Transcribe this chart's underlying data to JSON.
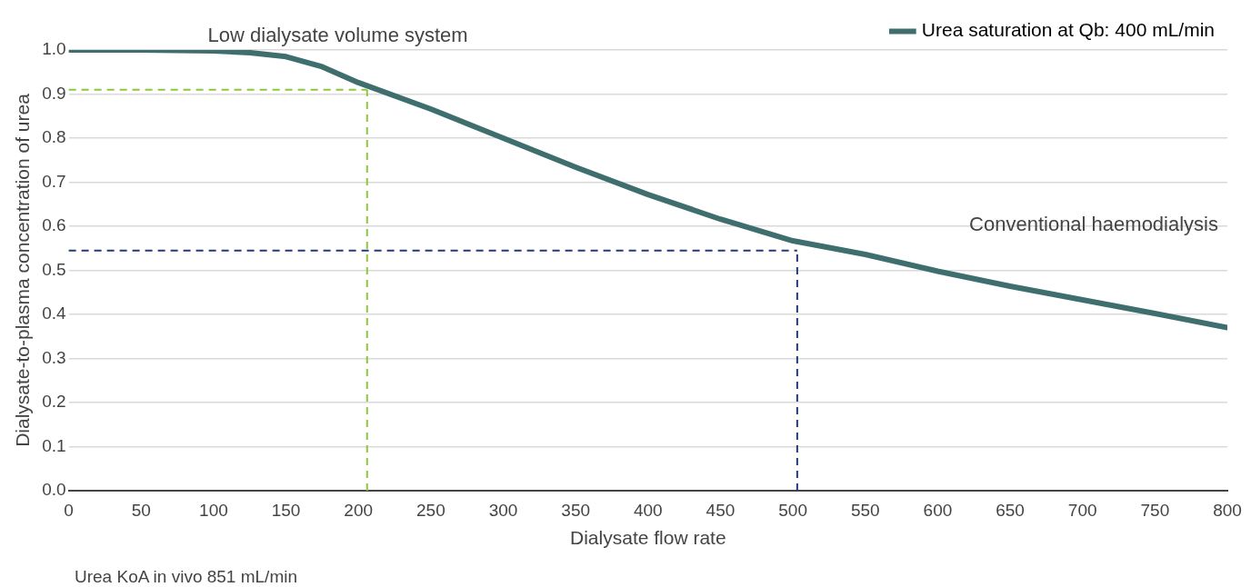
{
  "chart_data": {
    "type": "line",
    "xlabel": "Dialysate flow rate",
    "ylabel": "Dialysate-to-plasma concentration of urea",
    "xlim": [
      0,
      800
    ],
    "xticks": [
      0,
      50,
      100,
      150,
      200,
      250,
      300,
      350,
      400,
      450,
      500,
      550,
      600,
      650,
      700,
      750,
      800
    ],
    "ylim": [
      0,
      1.0
    ],
    "yticks": [
      {
        "value": 0,
        "label": "0.0"
      },
      0.1,
      0.2,
      0.3,
      0.4,
      0.5,
      0.6,
      0.7,
      0.8,
      0.9,
      {
        "value": 1,
        "label": "1.0"
      }
    ],
    "grid": "y",
    "legend": "top right",
    "marker": "none",
    "line_style": "solid",
    "series": [
      {
        "name": "Urea saturation at Qb: 400 mL/min",
        "color": "#3f6e6e",
        "x": [
          0,
          50,
          100,
          125,
          150,
          175,
          200,
          250,
          300,
          350,
          400,
          450,
          500,
          550,
          600,
          650,
          700,
          750,
          800
        ],
        "values": [
          1.0,
          1.0,
          0.998,
          0.994,
          0.985,
          0.962,
          0.926,
          0.866,
          0.8,
          0.734,
          0.672,
          0.616,
          0.567,
          0.536,
          0.498,
          0.464,
          0.433,
          0.402,
          0.37
        ]
      }
    ],
    "ref_lines": [
      {
        "axis": "y",
        "value": 0.91,
        "color": "#8dc63f",
        "line_style": "dashed"
      },
      {
        "axis": "x",
        "value": 206,
        "color": "#8dc63f",
        "line_style": "dashed"
      },
      {
        "axis": "y",
        "value": 0.545,
        "color": "#233a7a",
        "line_style": "dashed"
      },
      {
        "axis": "x",
        "value": 503,
        "color": "#233a7a",
        "line_style": "dashed"
      }
    ],
    "annotations": [
      "Low dialysate volume system",
      "Conventional haemodialysis",
      "Urea KoA in vivo 851 mL/min"
    ]
  }
}
